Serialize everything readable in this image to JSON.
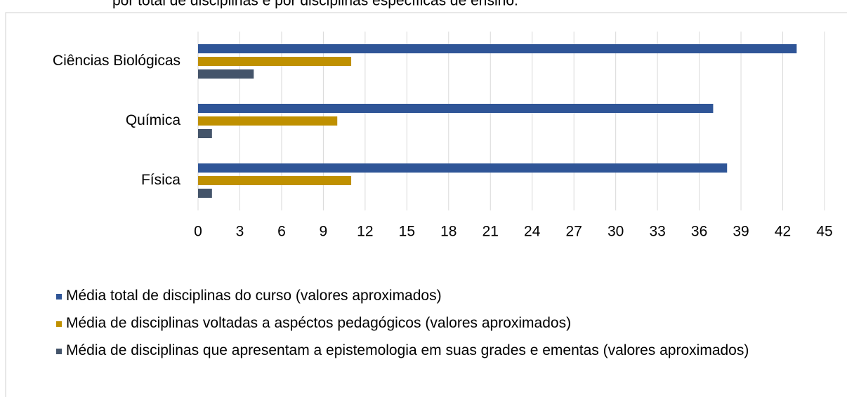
{
  "chart_data": {
    "type": "hbar",
    "title": "por total de disciplinas e por disciplinas específicas de ensino.",
    "categories": [
      "Ciências Biológicas",
      "Química",
      "Física"
    ],
    "series": [
      {
        "name": "Média total de disciplinas do curso (valores aproximados)",
        "color": "#2f5597",
        "values": [
          43,
          37,
          38
        ]
      },
      {
        "name": "Média de disciplinas voltadas a aspéctos pedagógicos (valores aproximados)",
        "color": "#bf9000",
        "values": [
          11,
          10,
          11
        ]
      },
      {
        "name": "Média de disciplinas que apresentam a epistemologia em suas grades e ementas (valores aproximados)",
        "color": "#44546a",
        "values": [
          4,
          1,
          1
        ]
      }
    ],
    "xlim": [
      0,
      45
    ],
    "xticks": [
      0,
      3,
      6,
      9,
      12,
      15,
      18,
      21,
      24,
      27,
      30,
      33,
      36,
      39,
      42,
      45
    ],
    "grid": true,
    "legend": "bottom"
  }
}
